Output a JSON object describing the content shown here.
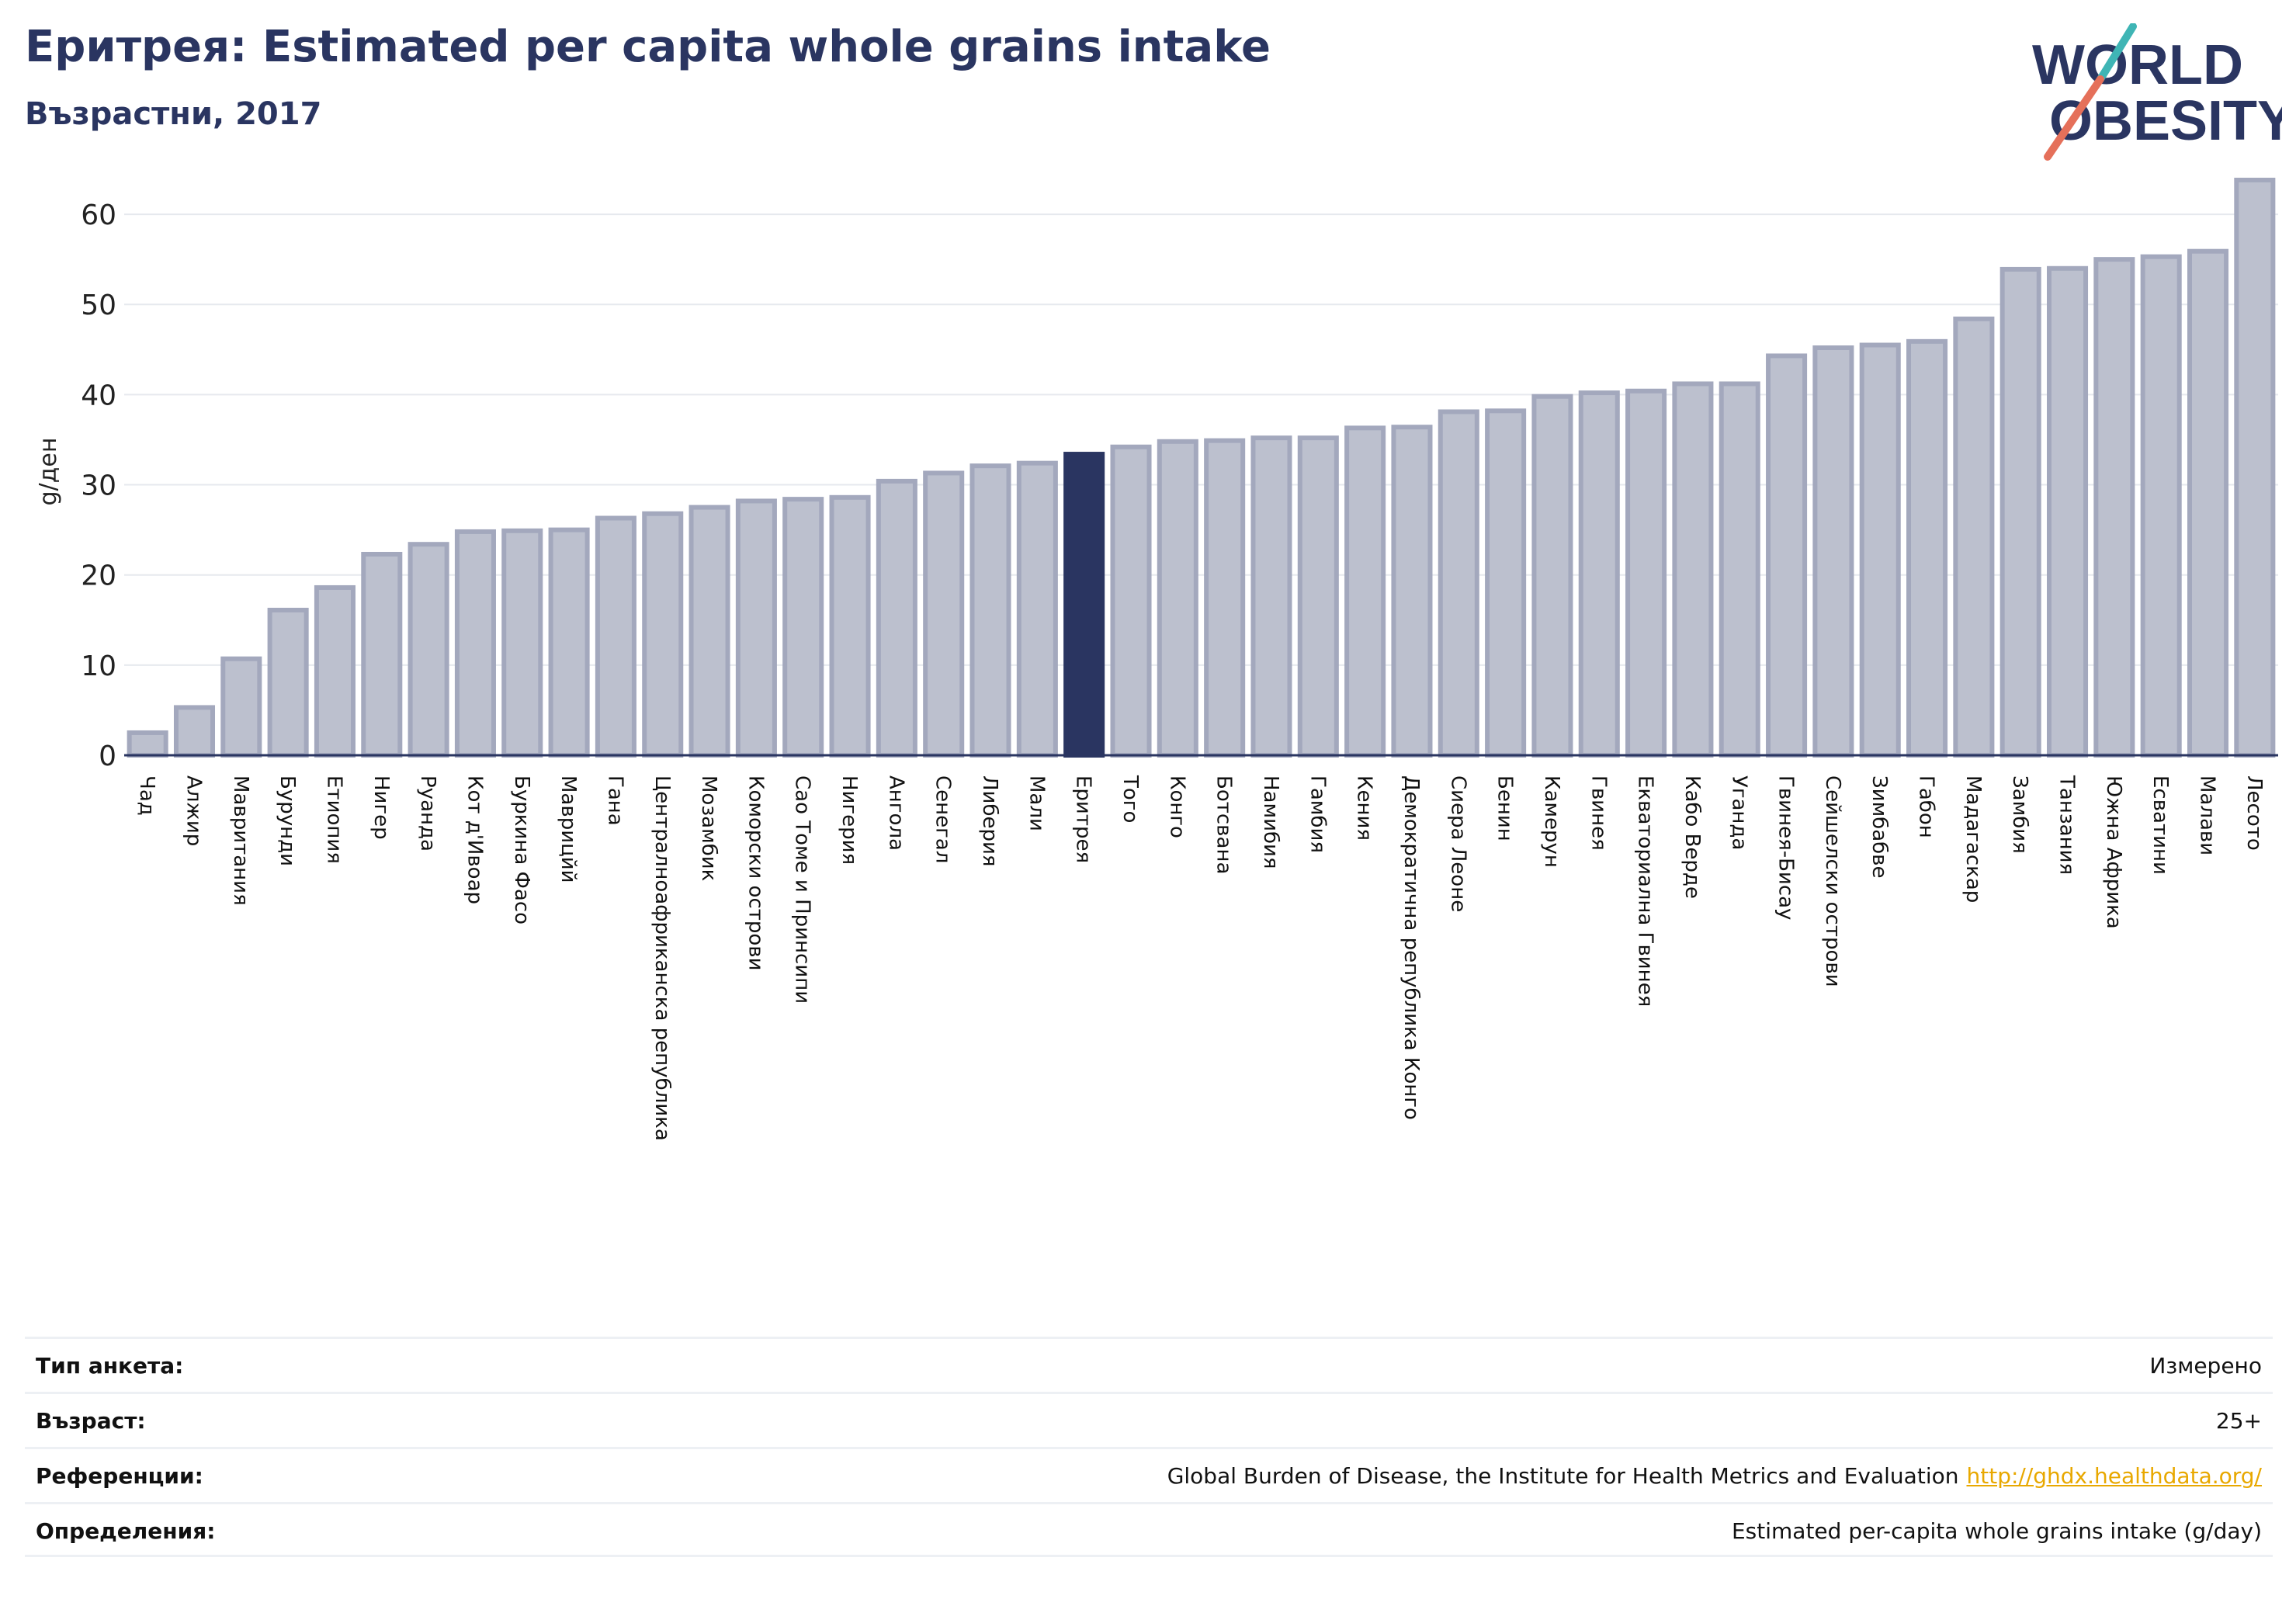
{
  "header": {
    "title": "Еритрея: Estimated per capita whole grains intake",
    "subtitle": "Възрастни, 2017"
  },
  "logo": {
    "line1": "WORLD",
    "line2": "OBESITY"
  },
  "colors": {
    "bar": "#bcc0ce",
    "bar_border": "#a3a8bd",
    "highlight": "#2a3561",
    "title": "#2a3561",
    "grid": "#e6e9ee",
    "link": "#e8a800",
    "logo_teal": "#3fb5b5",
    "logo_coral": "#e5705a"
  },
  "chart_data": {
    "type": "bar",
    "title": "Еритрея: Estimated per capita whole grains intake",
    "subtitle": "Възрастни, 2017",
    "ylabel": "g/ден",
    "xlabel": "",
    "ylim": [
      0,
      65
    ],
    "yticks": [
      0,
      10,
      20,
      30,
      40,
      50,
      60
    ],
    "grid": true,
    "highlight": "Еритрея",
    "categories": [
      "Чад",
      "Алжир",
      "Мавритания",
      "Бурунди",
      "Етиопия",
      "Нигер",
      "Руанда",
      "Кот д'Ивоар",
      "Буркина Фасо",
      "Маврицйй",
      "Гана",
      "Централноафриканска република",
      "Мозамбик",
      "Коморски острови",
      "Сао Томе и Принсипи",
      "Нигерия",
      "Ангола",
      "Сенегал",
      "Либерия",
      "Мали",
      "Еритрея",
      "Того",
      "Конго",
      "Ботсвана",
      "Намибия",
      "Гамбия",
      "Кения",
      "Демократична република Конго",
      "Сиера Леоне",
      "Бенин",
      "Камерун",
      "Гвинея",
      "Екваториална Гвинея",
      "Кабо Верде",
      "Уганда",
      "Гвинея-Бисау",
      "Сейшелски острови",
      "Зимбабве",
      "Габон",
      "Мадагаскар",
      "Замбия",
      "Танзания",
      "Южна Африка",
      "Есватини",
      "Малави",
      "Лесото"
    ],
    "values": [
      2.5,
      5.3,
      10.7,
      16.1,
      18.6,
      22.3,
      23.4,
      24.8,
      24.9,
      25.0,
      26.3,
      26.8,
      27.5,
      28.2,
      28.4,
      28.6,
      30.4,
      31.3,
      32.1,
      32.4,
      33.4,
      34.2,
      34.8,
      34.9,
      35.2,
      35.2,
      36.3,
      36.4,
      38.1,
      38.2,
      39.8,
      40.2,
      40.4,
      41.2,
      41.2,
      44.3,
      45.2,
      45.5,
      45.9,
      48.4,
      53.9,
      54.0,
      55.0,
      55.3,
      55.9,
      63.8
    ]
  },
  "info": {
    "survey_type": {
      "label": "Тип анкета:",
      "value": "Измерено"
    },
    "age": {
      "label": "Възраст:",
      "value": "25+"
    },
    "references": {
      "label": "Референции:",
      "value": "Global Burden of Disease, the Institute for Health Metrics and Evaluation",
      "link": "http://ghdx.healthdata.org/"
    },
    "definitions": {
      "label": "Определения:",
      "value": "Estimated per-capita whole grains intake (g/day)"
    }
  }
}
